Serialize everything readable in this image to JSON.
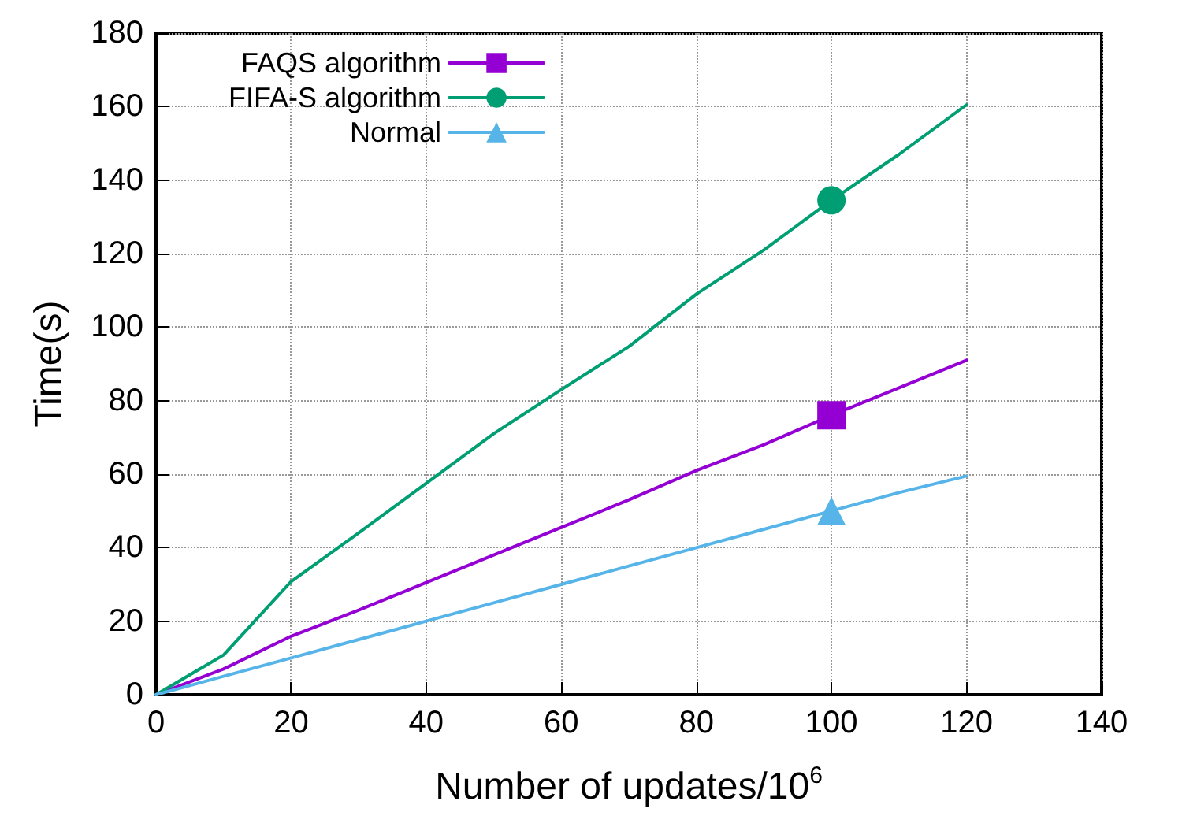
{
  "chart_data": {
    "type": "line",
    "xlabel": "Number of updates/10$^{6}$",
    "ylabel": "Time(s)",
    "x": [
      0,
      10,
      20,
      30,
      40,
      50,
      60,
      70,
      80,
      90,
      100,
      110,
      120
    ],
    "series": [
      {
        "name": "FAQS algorithm",
        "color": "#9400d3",
        "values": [
          0,
          7,
          15.9,
          23,
          30.5,
          38,
          45.5,
          53,
          61,
          68,
          76,
          83.5,
          91
        ]
      },
      {
        "type": "scatter",
        "color": "#9400d3",
        "marker": "square",
        "values": [
          null,
          null,
          null,
          null,
          null,
          null,
          null,
          null,
          null,
          null,
          76,
          null,
          null
        ]
      },
      {
        "name": "FIFA-S algorithm",
        "color": "#009e73",
        "values": [
          0,
          10.8,
          30.8,
          44,
          57.5,
          71,
          83,
          94.7,
          109,
          121,
          134.5,
          147,
          160.5
        ]
      },
      {
        "type": "scatter",
        "color": "#009e73",
        "marker": "circle",
        "values": [
          null,
          null,
          null,
          null,
          null,
          null,
          null,
          null,
          null,
          null,
          134.5,
          null,
          null
        ]
      },
      {
        "name": "Normal",
        "color": "#56b4e9",
        "values": [
          0,
          5,
          10,
          15,
          20,
          25,
          30,
          35,
          40,
          45,
          50,
          55,
          59.5
        ]
      },
      {
        "type": "scatter",
        "color": "#56b4e9",
        "marker": "triangle",
        "values": [
          null,
          null,
          null,
          null,
          null,
          null,
          null,
          null,
          null,
          null,
          50,
          null,
          null
        ]
      }
    ],
    "xlim": [
      0,
      140
    ],
    "xticks": [
      0,
      20,
      40,
      60,
      80,
      100,
      120,
      140
    ],
    "ylim": [
      0,
      180
    ],
    "yticks": [
      0,
      20,
      40,
      60,
      80,
      100,
      120,
      140,
      160,
      180
    ],
    "grid": true,
    "legend": "top left"
  }
}
